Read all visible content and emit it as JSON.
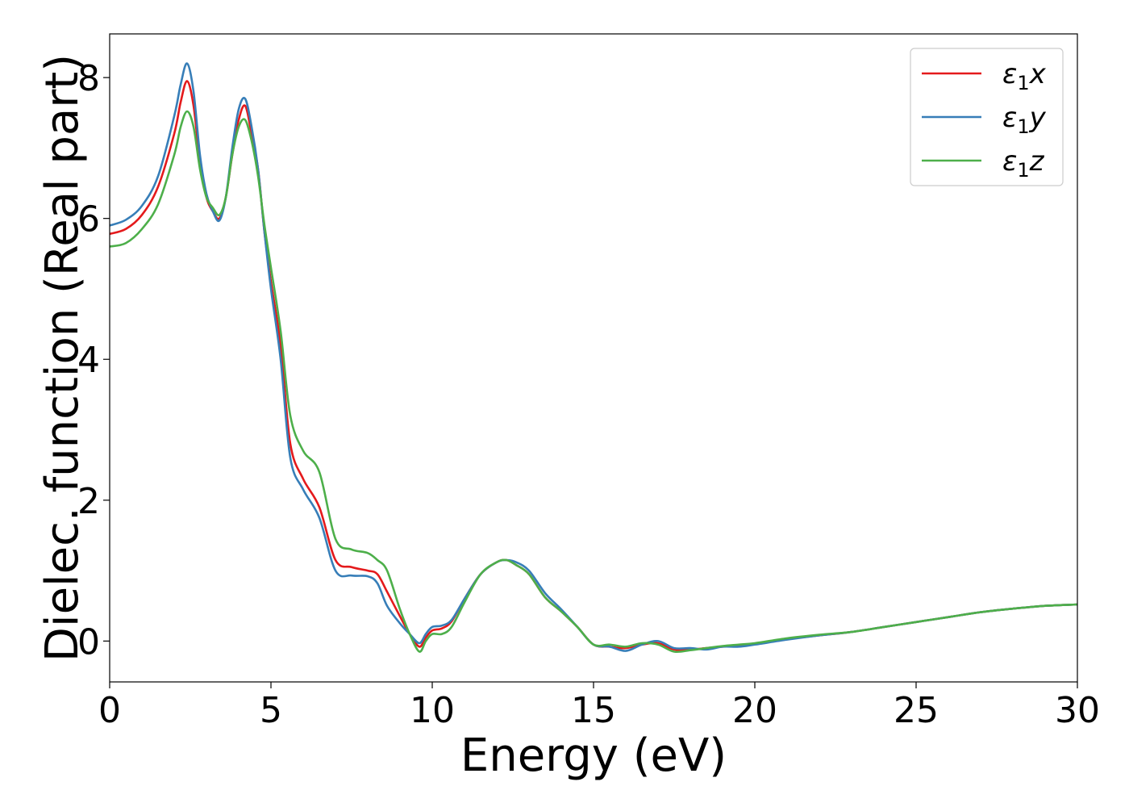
{
  "chart_data": {
    "type": "line",
    "title": "",
    "xlabel": "Energy (eV)",
    "ylabel": "Dielec. function (Real part)",
    "xlim": [
      0,
      30
    ],
    "ylim": [
      -0.58,
      8.62
    ],
    "xticks": [
      0,
      5,
      10,
      15,
      20,
      25,
      30
    ],
    "xtick_labels": [
      "0",
      "5",
      "10",
      "15",
      "20",
      "25",
      "30"
    ],
    "yticks": [
      0,
      2,
      4,
      6,
      8
    ],
    "ytick_labels": [
      "0",
      "2",
      "4",
      "6",
      "8"
    ],
    "grid": false,
    "legend_position": "top-right",
    "series": [
      {
        "name": "ε₁x",
        "legend_main": "ε",
        "legend_sub": "1",
        "legend_suffix": "x",
        "color": "#e41a1c",
        "x": [
          0,
          0.5,
          1.0,
          1.5,
          2.0,
          2.2,
          2.4,
          2.6,
          2.8,
          3.0,
          3.2,
          3.4,
          3.6,
          3.8,
          4.0,
          4.2,
          4.4,
          4.6,
          4.8,
          5.0,
          5.3,
          5.6,
          6.0,
          6.5,
          7.0,
          7.5,
          8.0,
          8.3,
          8.6,
          9.0,
          9.3,
          9.6,
          9.8,
          10.0,
          10.3,
          10.6,
          11.0,
          11.5,
          12.0,
          12.3,
          12.6,
          13.0,
          13.5,
          14.0,
          14.5,
          15.0,
          15.5,
          16.0,
          16.5,
          17.0,
          17.5,
          18.0,
          18.5,
          19.0,
          19.5,
          20.0,
          21.0,
          22.0,
          23.0,
          24.0,
          25.0,
          26.0,
          27.0,
          28.0,
          29.0,
          30.0
        ],
        "values": [
          5.78,
          5.85,
          6.05,
          6.45,
          7.2,
          7.65,
          7.95,
          7.6,
          6.8,
          6.3,
          6.1,
          6.0,
          6.3,
          6.9,
          7.4,
          7.6,
          7.2,
          6.7,
          5.8,
          5.1,
          4.2,
          2.8,
          2.3,
          1.9,
          1.15,
          1.05,
          1.0,
          0.95,
          0.7,
          0.35,
          0.1,
          -0.08,
          0.05,
          0.15,
          0.18,
          0.28,
          0.6,
          0.95,
          1.12,
          1.15,
          1.08,
          0.95,
          0.62,
          0.42,
          0.2,
          -0.05,
          -0.08,
          -0.1,
          -0.05,
          -0.03,
          -0.12,
          -0.12,
          -0.1,
          -0.08,
          -0.06,
          -0.04,
          0.03,
          0.08,
          0.13,
          0.2,
          0.27,
          0.34,
          0.41,
          0.46,
          0.5,
          0.52
        ]
      },
      {
        "name": "ε₁y",
        "legend_main": "ε",
        "legend_sub": "1",
        "legend_suffix": "y",
        "color": "#377eb8",
        "x": [
          0,
          0.5,
          1.0,
          1.5,
          2.0,
          2.2,
          2.4,
          2.6,
          2.8,
          3.0,
          3.2,
          3.4,
          3.6,
          3.8,
          4.0,
          4.2,
          4.4,
          4.6,
          4.8,
          5.0,
          5.3,
          5.6,
          6.0,
          6.5,
          7.0,
          7.5,
          8.0,
          8.3,
          8.6,
          9.0,
          9.3,
          9.6,
          9.8,
          10.0,
          10.3,
          10.6,
          11.0,
          11.5,
          12.0,
          12.3,
          12.6,
          13.0,
          13.5,
          14.0,
          14.5,
          15.0,
          15.5,
          16.0,
          16.5,
          17.0,
          17.5,
          18.0,
          18.5,
          19.0,
          19.5,
          20.0,
          21.0,
          22.0,
          23.0,
          24.0,
          25.0,
          26.0,
          27.0,
          28.0,
          29.0,
          30.0
        ],
        "values": [
          5.9,
          5.98,
          6.18,
          6.6,
          7.45,
          7.9,
          8.2,
          7.8,
          6.9,
          6.35,
          6.1,
          5.97,
          6.3,
          7.0,
          7.55,
          7.7,
          7.3,
          6.7,
          5.8,
          5.0,
          4.0,
          2.6,
          2.15,
          1.75,
          1.0,
          0.93,
          0.92,
          0.82,
          0.5,
          0.25,
          0.1,
          -0.03,
          0.1,
          0.2,
          0.22,
          0.3,
          0.6,
          0.95,
          1.12,
          1.15,
          1.12,
          1.0,
          0.68,
          0.45,
          0.2,
          -0.05,
          -0.08,
          -0.14,
          -0.05,
          0.0,
          -0.1,
          -0.1,
          -0.12,
          -0.08,
          -0.08,
          -0.05,
          0.02,
          0.08,
          0.13,
          0.2,
          0.27,
          0.34,
          0.41,
          0.46,
          0.5,
          0.52
        ]
      },
      {
        "name": "ε₁z",
        "legend_main": "ε",
        "legend_sub": "1",
        "legend_suffix": "z",
        "color": "#4daf4a",
        "x": [
          0,
          0.5,
          1.0,
          1.5,
          2.0,
          2.2,
          2.4,
          2.6,
          2.8,
          3.0,
          3.2,
          3.4,
          3.6,
          3.8,
          4.0,
          4.2,
          4.4,
          4.6,
          4.8,
          5.0,
          5.3,
          5.6,
          6.0,
          6.5,
          7.0,
          7.5,
          8.0,
          8.3,
          8.6,
          9.0,
          9.3,
          9.6,
          9.8,
          10.0,
          10.3,
          10.6,
          11.0,
          11.5,
          12.0,
          12.3,
          12.6,
          13.0,
          13.5,
          14.0,
          14.5,
          15.0,
          15.5,
          16.0,
          16.5,
          17.0,
          17.5,
          18.0,
          18.5,
          19.0,
          19.5,
          20.0,
          21.0,
          22.0,
          23.0,
          24.0,
          25.0,
          26.0,
          27.0,
          28.0,
          29.0,
          30.0
        ],
        "values": [
          5.6,
          5.65,
          5.85,
          6.2,
          6.9,
          7.3,
          7.52,
          7.3,
          6.7,
          6.3,
          6.15,
          6.05,
          6.3,
          6.9,
          7.3,
          7.4,
          7.1,
          6.6,
          5.9,
          5.3,
          4.4,
          3.2,
          2.7,
          2.4,
          1.45,
          1.3,
          1.25,
          1.15,
          1.0,
          0.45,
          0.1,
          -0.15,
          0.0,
          0.1,
          0.1,
          0.2,
          0.55,
          0.95,
          1.12,
          1.15,
          1.08,
          0.95,
          0.62,
          0.42,
          0.2,
          -0.05,
          -0.05,
          -0.08,
          -0.03,
          -0.05,
          -0.15,
          -0.13,
          -0.1,
          -0.07,
          -0.05,
          -0.03,
          0.04,
          0.09,
          0.13,
          0.2,
          0.27,
          0.34,
          0.41,
          0.46,
          0.5,
          0.52
        ]
      }
    ]
  }
}
